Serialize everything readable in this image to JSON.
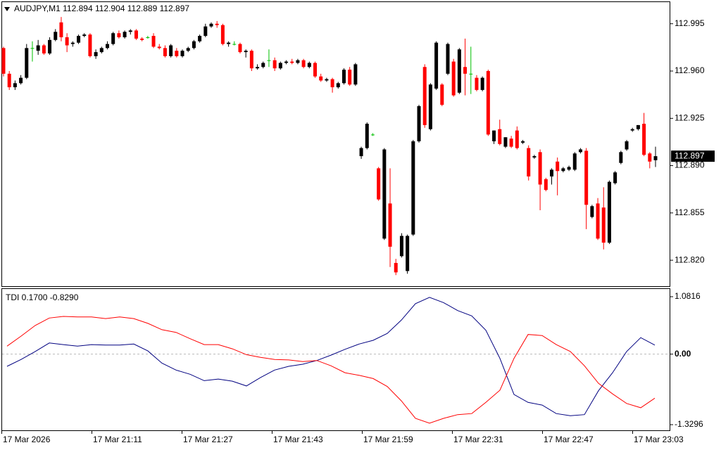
{
  "chart_data": [
    {
      "type": "candlestick",
      "title": "AUDJPY,M1 112.894 112.904 112.889 112.897",
      "up_color": "#000000",
      "down_color": "#ff0000",
      "doji_color": "#00c000",
      "ylim": [
        112.8008,
        113.011
      ],
      "yticks": [
        112.995,
        {
          "value": 112.96,
          "label": "112.960"
        },
        112.925,
        {
          "value": 112.89,
          "label": "112.890"
        },
        112.855,
        {
          "value": 112.82,
          "label": "112.820"
        }
      ],
      "last_price": 112.897,
      "open": [
        112.977,
        112.958,
        112.948,
        112.951,
        112.955,
        112.977,
        112.975,
        112.979,
        112.973,
        112.983,
        112.996,
        112.985,
        112.98,
        112.981,
        112.986,
        112.987,
        112.971,
        112.974,
        112.977,
        112.98,
        112.988,
        112.985,
        112.989,
        112.99,
        112.984,
        112.985,
        112.986,
        112.978,
        112.977,
        112.971,
        112.975,
        112.971,
        112.975,
        112.977,
        112.982,
        112.986,
        112.993,
        112.995,
        112.994,
        112.98,
        112.98,
        112.98,
        112.974,
        112.975,
        112.962,
        112.963,
        112.968,
        112.968,
        112.962,
        112.966,
        112.967,
        112.966,
        112.968,
        112.963,
        112.966,
        112.956,
        112.953,
        112.954,
        112.948,
        112.951,
        112.961,
        112.95,
        112.897,
        112.903,
        112.913,
        112.888,
        112.836,
        112.862,
        112.818,
        112.823,
        112.812,
        112.839,
        112.908,
        112.963,
        112.917,
        112.947,
        112.95,
        112.958,
        112.967,
        112.944,
        112.963,
        112.958,
        112.955,
        112.946,
        112.96,
        112.908,
        112.917,
        112.904,
        112.91,
        112.916,
        112.907,
        112.903,
        112.896,
        112.9,
        112.88,
        112.882,
        112.893,
        112.886,
        112.887,
        112.887,
        112.9,
        112.901,
        112.852,
        112.862,
        112.859,
        112.833,
        112.877,
        112.892,
        112.902,
        112.916,
        112.917,
        112.921,
        112.899,
        112.894
      ],
      "high": [
        112.978,
        112.96,
        112.953,
        112.957,
        112.98,
        112.982,
        112.983,
        112.98,
        112.985,
        112.991,
        113.0,
        112.988,
        112.982,
        112.987,
        112.988,
        112.988,
        112.976,
        112.978,
        112.982,
        112.989,
        112.99,
        112.99,
        112.991,
        112.991,
        112.985,
        112.986,
        112.988,
        112.98,
        112.979,
        112.98,
        112.977,
        112.976,
        112.978,
        112.983,
        112.987,
        112.995,
        112.996,
        112.997,
        112.995,
        112.982,
        112.982,
        112.981,
        112.976,
        112.976,
        112.965,
        112.967,
        112.976,
        112.97,
        112.967,
        112.968,
        112.969,
        112.969,
        112.969,
        112.967,
        112.967,
        112.958,
        112.955,
        112.955,
        112.952,
        112.962,
        112.963,
        112.966,
        112.904,
        112.922,
        112.914,
        112.889,
        112.903,
        112.888,
        112.821,
        112.84,
        112.839,
        112.909,
        112.935,
        112.965,
        112.951,
        112.982,
        112.951,
        112.981,
        112.969,
        112.977,
        112.984,
        112.978,
        112.957,
        112.956,
        112.961,
        112.916,
        112.924,
        112.911,
        112.912,
        112.919,
        112.909,
        112.905,
        112.898,
        112.902,
        112.881,
        112.888,
        112.896,
        112.889,
        112.89,
        112.9,
        112.903,
        112.903,
        112.861,
        112.866,
        112.874,
        112.879,
        112.886,
        112.901,
        112.909,
        112.918,
        112.92,
        112.929,
        112.9,
        112.904
      ],
      "low": [
        112.956,
        112.946,
        112.946,
        112.95,
        112.954,
        112.967,
        112.972,
        112.972,
        112.972,
        112.982,
        112.982,
        112.974,
        112.978,
        112.98,
        112.985,
        112.97,
        112.969,
        112.973,
        112.976,
        112.979,
        112.984,
        112.984,
        112.987,
        112.983,
        112.982,
        112.984,
        112.977,
        112.976,
        112.97,
        112.97,
        112.97,
        112.97,
        112.974,
        112.976,
        112.981,
        112.985,
        112.992,
        112.992,
        112.979,
        112.978,
        112.979,
        112.973,
        112.97,
        112.96,
        112.961,
        112.962,
        112.963,
        112.96,
        112.961,
        112.965,
        112.965,
        112.965,
        112.962,
        112.962,
        112.955,
        112.952,
        112.952,
        112.944,
        112.947,
        112.95,
        112.949,
        112.949,
        112.895,
        112.902,
        112.912,
        112.864,
        112.835,
        112.815,
        112.809,
        112.822,
        112.81,
        112.838,
        112.907,
        112.918,
        112.916,
        112.946,
        112.934,
        112.957,
        112.941,
        112.943,
        112.942,
        112.943,
        112.945,
        112.945,
        112.912,
        112.906,
        112.905,
        112.903,
        112.903,
        112.902,
        112.906,
        112.879,
        112.895,
        112.857,
        112.871,
        112.876,
        112.868,
        112.885,
        112.886,
        112.886,
        112.899,
        112.843,
        112.851,
        112.835,
        112.828,
        112.832,
        112.876,
        112.891,
        112.901,
        112.915,
        112.916,
        112.897,
        112.888,
        112.889
      ],
      "close": [
        112.958,
        112.948,
        112.951,
        112.955,
        112.977,
        112.977,
        112.979,
        112.973,
        112.983,
        112.989,
        112.985,
        112.979,
        112.981,
        112.986,
        112.987,
        112.971,
        112.974,
        112.977,
        112.98,
        112.988,
        112.985,
        112.989,
        112.99,
        112.984,
        112.983,
        112.985,
        112.978,
        112.977,
        112.971,
        112.979,
        112.971,
        112.975,
        112.977,
        112.982,
        112.986,
        112.993,
        112.995,
        112.994,
        112.98,
        112.981,
        112.98,
        112.974,
        112.975,
        112.962,
        112.963,
        112.966,
        112.968,
        112.962,
        112.966,
        112.967,
        112.966,
        112.968,
        112.963,
        112.966,
        112.956,
        112.953,
        112.954,
        112.948,
        112.951,
        112.961,
        112.95,
        112.965,
        112.903,
        112.921,
        112.913,
        112.865,
        112.902,
        112.83,
        112.811,
        112.838,
        112.838,
        112.908,
        112.934,
        112.92,
        112.95,
        112.981,
        112.935,
        112.98,
        112.942,
        112.976,
        112.958,
        112.958,
        112.946,
        112.955,
        112.913,
        112.916,
        112.906,
        112.911,
        112.904,
        112.903,
        112.908,
        112.882,
        112.897,
        112.876,
        112.872,
        112.887,
        112.886,
        112.888,
        112.889,
        112.899,
        112.902,
        112.861,
        112.86,
        112.836,
        112.833,
        112.878,
        112.885,
        112.9,
        112.908,
        112.917,
        112.92,
        112.898,
        112.893,
        112.897
      ]
    },
    {
      "type": "line",
      "title": "TDI 0.1700 -0.8290",
      "ylim": [
        -1.4356,
        1.2273
      ],
      "yticks": [
        1.0816,
        {
          "value": 0,
          "label": "0.00"
        },
        -1.3296
      ],
      "zero_line": true,
      "x_labels": [
        "17 Mar 2026",
        "17 Mar 21:11",
        "17 Mar 21:27",
        "17 Mar 21:43",
        "17 Mar 21:59",
        "17 Mar 22:31",
        "17 Mar 22:47",
        "17 Mar 23:03"
      ],
      "series": [
        {
          "color": "#000080",
          "values": [
            -0.23,
            -0.1,
            0.05,
            0.21,
            0.18,
            0.15,
            0.18,
            0.17,
            0.17,
            0.19,
            0.06,
            -0.17,
            -0.3,
            -0.38,
            -0.5,
            -0.47,
            -0.51,
            -0.6,
            -0.44,
            -0.3,
            -0.23,
            -0.19,
            -0.12,
            -0.02,
            0.09,
            0.19,
            0.26,
            0.39,
            0.64,
            0.95,
            1.07,
            0.97,
            0.82,
            0.72,
            0.45,
            -0.08,
            -0.76,
            -0.91,
            -0.96,
            -1.12,
            -1.16,
            -1.14,
            -0.69,
            -0.35,
            0.05,
            0.31,
            0.17
          ]
        },
        {
          "color": "#ff0000",
          "values": [
            0.15,
            0.34,
            0.54,
            0.68,
            0.71,
            0.7,
            0.7,
            0.67,
            0.7,
            0.67,
            0.58,
            0.46,
            0.41,
            0.29,
            0.18,
            0.18,
            0.1,
            -0.01,
            -0.06,
            -0.1,
            -0.11,
            -0.14,
            -0.12,
            -0.22,
            -0.35,
            -0.4,
            -0.46,
            -0.61,
            -0.88,
            -1.21,
            -1.3,
            -1.21,
            -1.14,
            -1.12,
            -0.91,
            -0.68,
            -0.08,
            0.37,
            0.35,
            0.18,
            0.05,
            -0.22,
            -0.55,
            -0.75,
            -0.93,
            -1.01,
            -0.83
          ]
        }
      ]
    }
  ]
}
